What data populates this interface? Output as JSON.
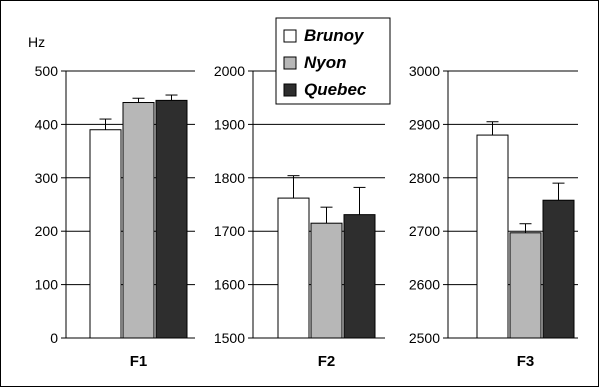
{
  "chart_data": [
    {
      "type": "bar",
      "panel_label": "F1",
      "ylabel": "Hz",
      "ylim": [
        0,
        500
      ],
      "yticks": [
        "0",
        "100",
        "200",
        "300",
        "400",
        "500"
      ],
      "series": [
        {
          "name": "Brunoy",
          "values": [
            390
          ],
          "errors": [
            20
          ]
        },
        {
          "name": "Nyon",
          "values": [
            441
          ],
          "errors": [
            8
          ]
        },
        {
          "name": "Quebec",
          "values": [
            445
          ],
          "errors": [
            10
          ]
        }
      ]
    },
    {
      "type": "bar",
      "panel_label": "F2",
      "ylabel": "",
      "ylim": [
        1500,
        2000
      ],
      "yticks": [
        "1500",
        "1600",
        "1700",
        "1800",
        "1900",
        "2000"
      ],
      "series": [
        {
          "name": "Brunoy",
          "values": [
            1762
          ],
          "errors": [
            42
          ]
        },
        {
          "name": "Nyon",
          "values": [
            1715
          ],
          "errors": [
            30
          ]
        },
        {
          "name": "Quebec",
          "values": [
            1731
          ],
          "errors": [
            51
          ]
        }
      ]
    },
    {
      "type": "bar",
      "panel_label": "F3",
      "ylabel": "",
      "ylim": [
        2500,
        3000
      ],
      "yticks": [
        "2500",
        "2600",
        "2700",
        "2800",
        "2900",
        "3000"
      ],
      "series": [
        {
          "name": "Brunoy",
          "values": [
            2880
          ],
          "errors": [
            25
          ]
        },
        {
          "name": "Nyon",
          "values": [
            2697
          ],
          "errors": [
            17
          ]
        },
        {
          "name": "Quebec",
          "values": [
            2758
          ],
          "errors": [
            32
          ]
        }
      ]
    }
  ],
  "legend": {
    "placement": "top-center",
    "items": [
      {
        "label": "Brunoy",
        "color": "#ffffff"
      },
      {
        "label": "Nyon",
        "color": "#b7b7b7"
      },
      {
        "label": "Quebec",
        "color": "#2e2e2e"
      }
    ]
  },
  "colors": {
    "brunoy": "#ffffff",
    "nyon": "#b7b7b7",
    "quebec": "#2e2e2e",
    "axis": "#000000"
  }
}
